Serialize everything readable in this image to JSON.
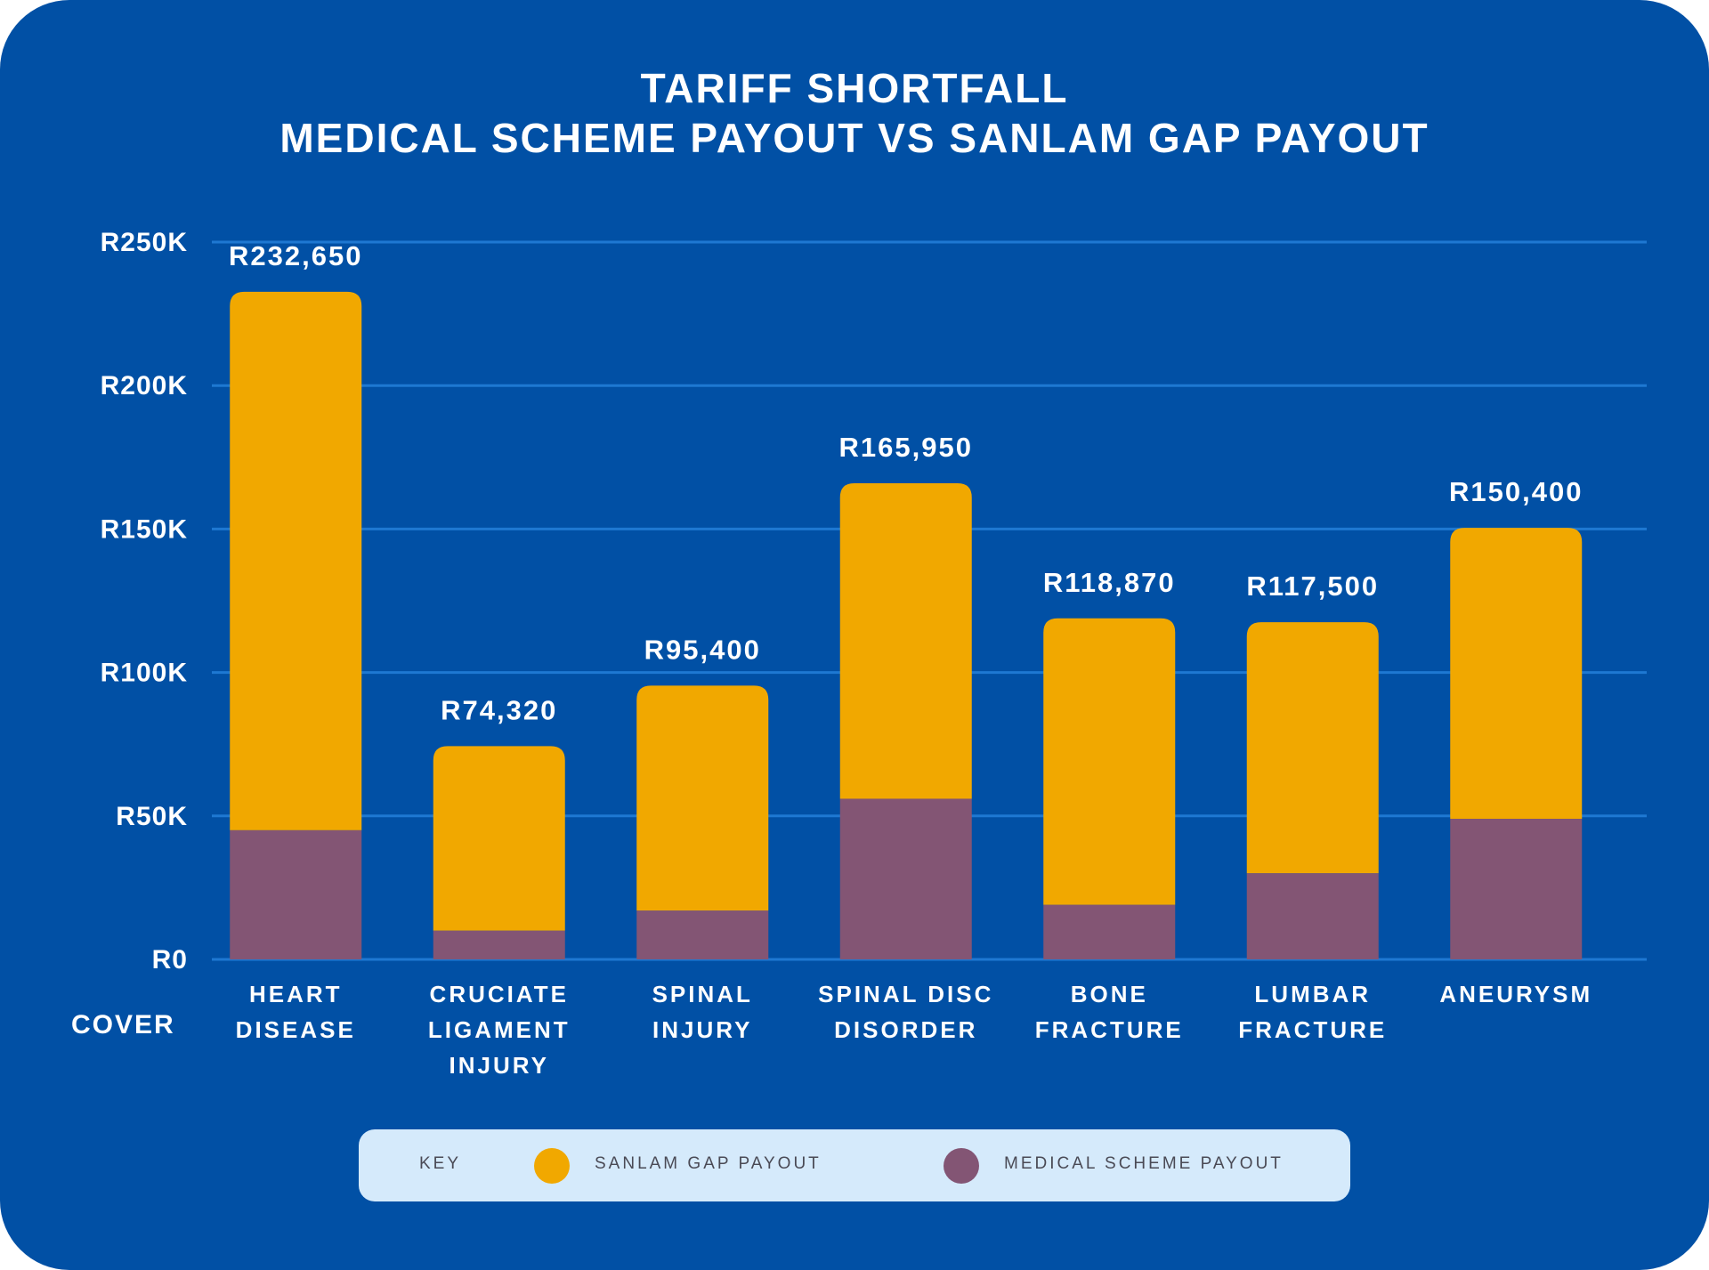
{
  "chart_data": {
    "type": "bar",
    "stacked": true,
    "title": "TARIFF SHORTFALL",
    "subtitle": "MEDICAL SCHEME PAYOUT VS SANLAM GAP PAYOUT",
    "xlabel": "COVER",
    "ylabel": "",
    "ylim": [
      0,
      250000
    ],
    "yticks": [
      0,
      50000,
      100000,
      150000,
      200000,
      250000
    ],
    "ytick_labels": [
      "R0",
      "R50K",
      "R100K",
      "R150K",
      "R200K",
      "R250K"
    ],
    "grid": true,
    "categories": [
      [
        "HEART",
        "DISEASE"
      ],
      [
        "CRUCIATE",
        "LIGAMENT",
        "INJURY"
      ],
      [
        "SPINAL",
        "INJURY"
      ],
      [
        "SPINAL DISC",
        "DISORDER"
      ],
      [
        "BONE",
        "FRACTURE"
      ],
      [
        "LUMBAR",
        "FRACTURE"
      ],
      [
        "ANEURYSM"
      ]
    ],
    "series": [
      {
        "name": "MEDICAL SCHEME PAYOUT",
        "color": "#835574",
        "values": [
          45000,
          10000,
          17000,
          56000,
          19000,
          30000,
          49000
        ]
      },
      {
        "name": "SANLAM GAP PAYOUT",
        "color": "#f1a800",
        "values": [
          187650,
          64320,
          78400,
          109950,
          99870,
          87500,
          101400
        ]
      }
    ],
    "totals": [
      232650,
      74320,
      95400,
      165950,
      118870,
      117500,
      150400
    ],
    "total_labels": [
      "R232,650",
      "R74,320",
      "R95,400",
      "R165,950",
      "R118,870",
      "R117,500",
      "R150,400"
    ]
  },
  "legend": {
    "key_label": "KEY",
    "items": [
      {
        "label": "SANLAM GAP PAYOUT",
        "color": "#f1a800"
      },
      {
        "label": "MEDICAL SCHEME PAYOUT",
        "color": "#835574"
      }
    ]
  },
  "colors": {
    "background": "#0150a5",
    "gridline": "#1e78d2",
    "text": "#ffffff"
  }
}
